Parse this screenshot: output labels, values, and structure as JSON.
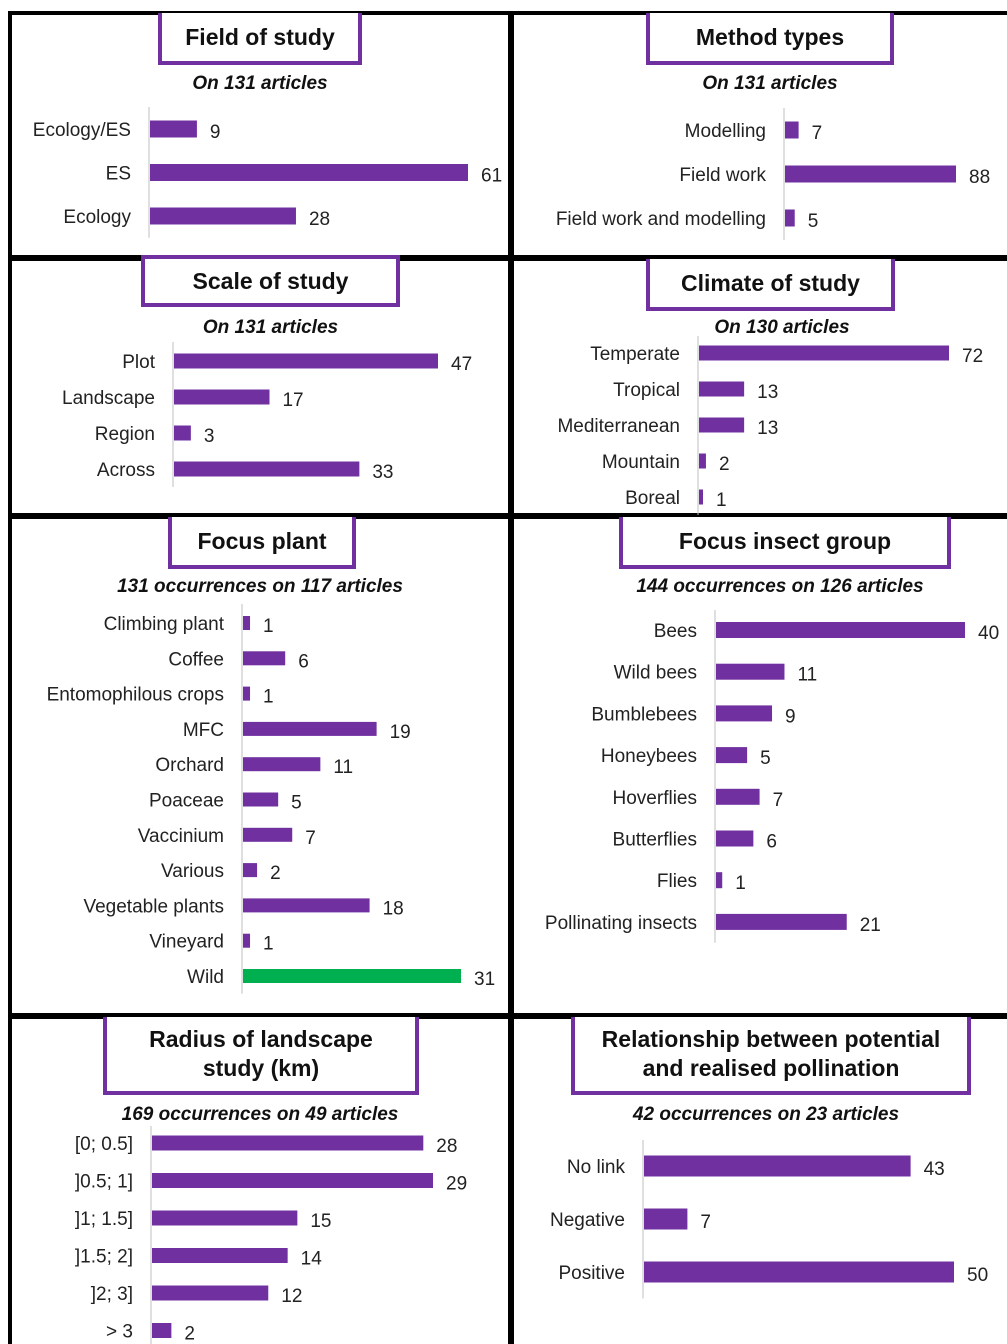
{
  "colors": {
    "bar": "#7030a0",
    "highlight": "#00b050",
    "frame": "#000000",
    "title_border": "#7030a0"
  },
  "chart_data": [
    {
      "id": "field",
      "type": "bar",
      "orientation": "horizontal",
      "title": "Field of study",
      "subtitle": "On 131 articles",
      "categories": [
        "Ecology/ES",
        "ES",
        "Ecology"
      ],
      "values": [
        9,
        61,
        28
      ]
    },
    {
      "id": "method",
      "type": "bar",
      "orientation": "horizontal",
      "title": "Method types",
      "subtitle": "On 131 articles",
      "categories": [
        "Modelling",
        "Field work",
        "Field work and modelling"
      ],
      "values": [
        7,
        88,
        5
      ]
    },
    {
      "id": "scale",
      "type": "bar",
      "orientation": "horizontal",
      "title": "Scale of study",
      "subtitle": "On 131 articles",
      "categories": [
        "Plot",
        "Landscape",
        "Region",
        "Across"
      ],
      "values": [
        47,
        17,
        3,
        33
      ]
    },
    {
      "id": "climate",
      "type": "bar",
      "orientation": "horizontal",
      "title": "Climate of study",
      "subtitle": "On 130 articles",
      "categories": [
        "Temperate",
        "Tropical",
        "Mediterranean",
        "Mountain",
        "Boreal"
      ],
      "values": [
        72,
        13,
        13,
        2,
        1
      ]
    },
    {
      "id": "plant",
      "type": "bar",
      "orientation": "horizontal",
      "title": "Focus plant",
      "subtitle": "131 occurrences on 117 articles",
      "categories": [
        "Climbing plant",
        "Coffee",
        "Entomophilous crops",
        "MFC",
        "Orchard",
        "Poaceae",
        "Vaccinium",
        "Various",
        "Vegetable plants",
        "Vineyard",
        "Wild"
      ],
      "values": [
        1,
        6,
        1,
        19,
        11,
        5,
        7,
        2,
        18,
        1,
        31
      ],
      "highlighted": [
        "Wild"
      ]
    },
    {
      "id": "insect",
      "type": "bar",
      "orientation": "horizontal",
      "title": "Focus insect group",
      "subtitle": "144 occurrences on 126 articles",
      "categories": [
        "Bees",
        "Wild bees",
        "Bumblebees",
        "Honeybees",
        "Hoverflies",
        "Butterflies",
        "Flies",
        "Pollinating insects"
      ],
      "values": [
        40,
        11,
        9,
        5,
        7,
        6,
        1,
        21
      ]
    },
    {
      "id": "radius",
      "type": "bar",
      "orientation": "horizontal",
      "title": "Radius of landscape\nstudy (km)",
      "subtitle": "169 occurrences on 49 articles",
      "categories": [
        "[0; 0.5]",
        "]0.5; 1]",
        "]1; 1.5]",
        "]1.5; 2]",
        "]2; 3]",
        "> 3"
      ],
      "values": [
        28,
        29,
        15,
        14,
        12,
        2
      ]
    },
    {
      "id": "relationship",
      "type": "bar",
      "orientation": "horizontal",
      "title": "Relationship between potential\nand realised pollination",
      "subtitle": "42 occurrences on 23 articles",
      "categories": [
        "No link",
        "Negative",
        "Positive"
      ],
      "values": [
        43,
        7,
        50
      ]
    }
  ]
}
